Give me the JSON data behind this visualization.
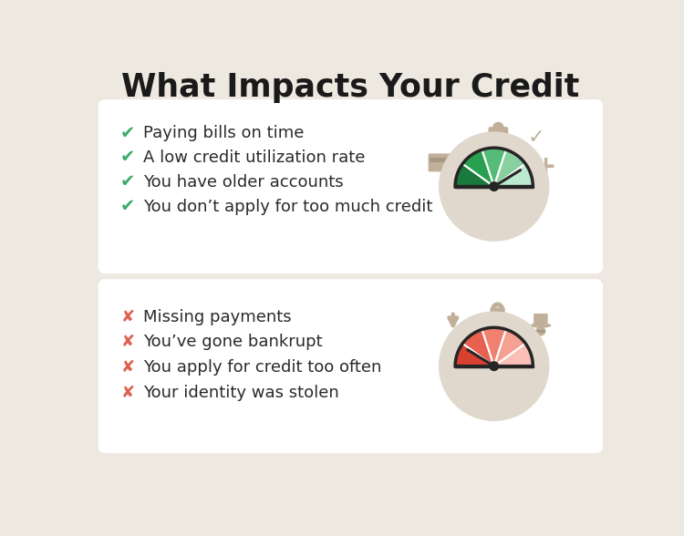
{
  "title": "What Impacts Your Credit",
  "bg_color": "#ede8e0",
  "card_color": "#ffffff",
  "positive_items": [
    "Paying bills on time",
    "A low credit utilization rate",
    "You have older accounts",
    "You don’t apply for too much credit"
  ],
  "negative_items": [
    "Missing payments",
    "You’ve gone bankrupt",
    "You apply for credit too often",
    "Your identity was stolen"
  ],
  "check_color": "#3aaa6a",
  "x_color": "#e06050",
  "title_color": "#1a1a1a",
  "text_color": "#2a2a2a",
  "gauge_green_dark": "#1a7a3c",
  "gauge_green_mid1": "#28a050",
  "gauge_green_mid2": "#55bb78",
  "gauge_green_light1": "#88d0a0",
  "gauge_green_light2": "#bbead0",
  "gauge_red_dark": "#d94030",
  "gauge_red_mid1": "#e86050",
  "gauge_red_mid2": "#f08070",
  "gauge_red_light1": "#f5a090",
  "gauge_red_light2": "#fac0b8",
  "gauge_bg": "#e0d8cc",
  "icon_color": "#c0b09a",
  "dark": "#252525"
}
